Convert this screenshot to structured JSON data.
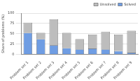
{
  "chart_data": {
    "type": "bar",
    "y_label": "Share of problems (%)",
    "categories": [
      "Problem set 1",
      "Problem set 2",
      "Problem set 3",
      "Problem set 4",
      "Problem set 5",
      "Problem set 6",
      "Problem set 7",
      "Problem set 8",
      "Problem set 9"
    ],
    "series": [
      {
        "name": "Solved",
        "color": "#6f9de3",
        "values": [
          52,
          37,
          22,
          15,
          12,
          14,
          12,
          8,
          4
        ]
      },
      {
        "name": "Unsolved",
        "color": "#bdbdbd",
        "values": [
          25,
          15,
          63,
          37,
          25,
          34,
          43,
          40,
          53
        ]
      }
    ],
    "stacked": true,
    "ylim": [
      0,
      100
    ],
    "yticks": [
      0,
      25,
      50,
      75,
      100
    ],
    "grid": true,
    "legend": "upper right"
  }
}
